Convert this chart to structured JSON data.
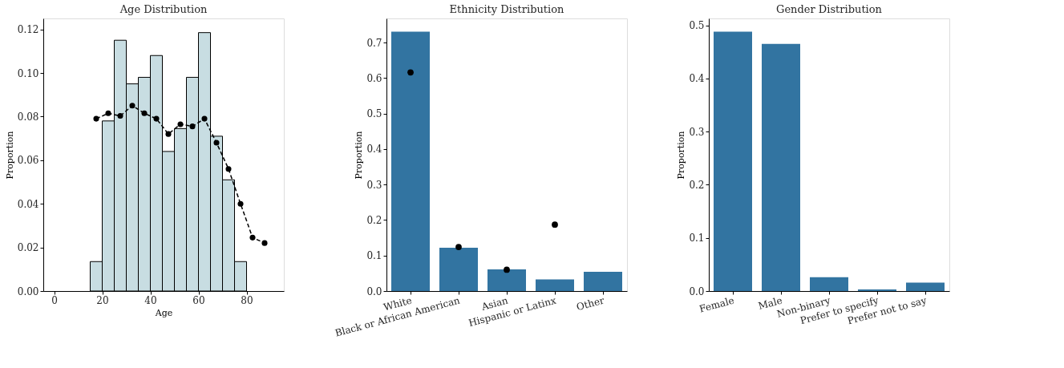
{
  "chart_data": [
    {
      "type": "histogram",
      "title": "Age Distribution",
      "xlabel": "Age",
      "ylabel": "Proportion",
      "bins": [
        15,
        20,
        25,
        30,
        35,
        40,
        45,
        50,
        55,
        60,
        65,
        70,
        75,
        80
      ],
      "values": [
        0.0135,
        0.078,
        0.115,
        0.095,
        0.098,
        0.108,
        0.064,
        0.0745,
        0.098,
        0.1185,
        0.071,
        0.051,
        0.0135
      ],
      "color": "#c8dde2",
      "series": [
        {
          "type": "line",
          "color": "#000000",
          "marker": "circle",
          "line_style": "dashed",
          "x": [
            17.5,
            22.5,
            27.5,
            32.5,
            37.5,
            42.5,
            47.5,
            52.5,
            57.5,
            62.5,
            67.5,
            72.5,
            77.5,
            82.5,
            87.5
          ],
          "values": [
            0.079,
            0.0815,
            0.0803,
            0.085,
            0.0815,
            0.079,
            0.072,
            0.0765,
            0.0755,
            0.079,
            0.068,
            0.056,
            0.04,
            0.0245,
            0.022
          ]
        }
      ],
      "xlim": [
        -4.5,
        95.5
      ],
      "xticks": [
        0,
        20,
        40,
        60,
        80
      ],
      "ylim": [
        0,
        0.125
      ],
      "yticks": [
        {
          "value": 0,
          "label": "0.00"
        },
        {
          "value": 0.02,
          "label": "0.02"
        },
        {
          "value": 0.04,
          "label": "0.04"
        },
        {
          "value": 0.06,
          "label": "0.06"
        },
        {
          "value": 0.08,
          "label": "0.08"
        },
        {
          "value": 0.1,
          "label": "0.10"
        },
        {
          "value": 0.12,
          "label": "0.12"
        }
      ],
      "grid": false
    },
    {
      "type": "bar",
      "title": "Ethnicity Distribution",
      "ylabel": "Proportion",
      "categories": [
        "White",
        "Black or African American",
        "Asian",
        "Hispanic or Latinx",
        "Other"
      ],
      "values": [
        0.731,
        0.122,
        0.061,
        0.033,
        0.054
      ],
      "color": "#3274a1",
      "series": [
        {
          "type": "scatter",
          "color": "#000000",
          "marker": "circle",
          "x": [
            "White",
            "Black or African American",
            "Asian",
            "Hispanic or Latinx"
          ],
          "values": [
            0.616,
            0.124,
            0.06,
            0.187
          ]
        }
      ],
      "ylim": [
        0,
        0.768
      ],
      "yticks": [
        {
          "value": 0,
          "label": "0.0"
        },
        0.1,
        0.2,
        0.3,
        0.4,
        0.5,
        0.6,
        0.7
      ],
      "grid": false
    },
    {
      "type": "bar",
      "title": "Gender Distribution",
      "ylabel": "Proportion",
      "categories": [
        "Female",
        "Male",
        "Non-binary",
        "Prefer to specify",
        "Prefer not to say"
      ],
      "values": [
        0.488,
        0.465,
        0.026,
        0.003,
        0.016
      ],
      "color": "#3274a1",
      "ylim": [
        0,
        0.513
      ],
      "yticks": [
        {
          "value": 0,
          "label": "0.0"
        },
        0.1,
        0.2,
        0.3,
        0.4,
        0.5
      ],
      "grid": false
    }
  ]
}
